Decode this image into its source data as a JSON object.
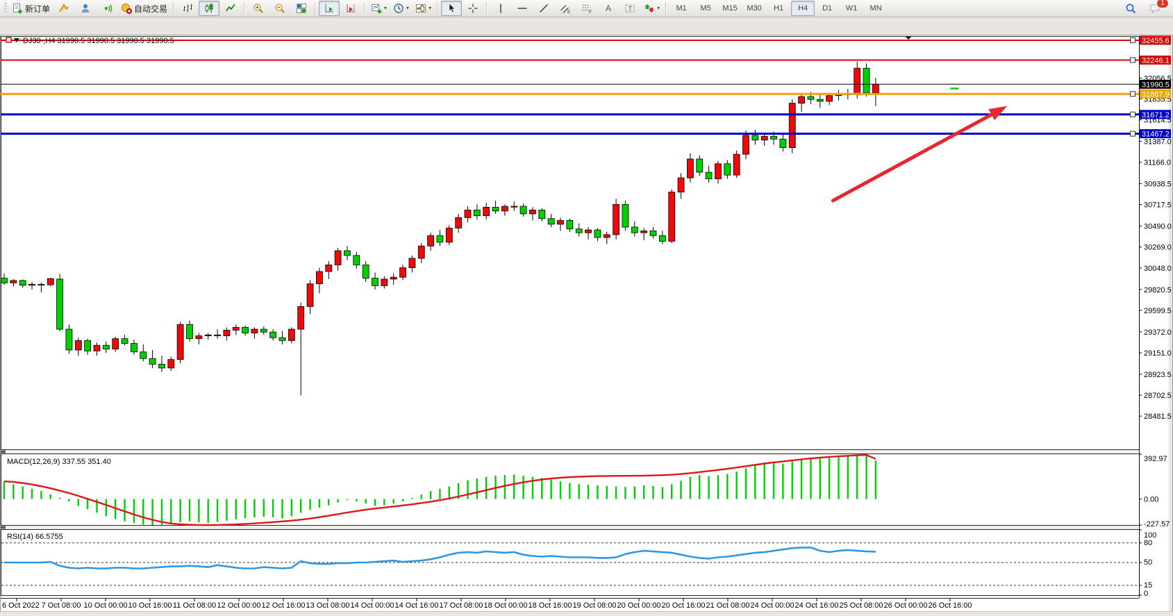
{
  "toolbar": {
    "new_order": "新订单",
    "auto_trading": "自动交易",
    "timeframes": [
      "M1",
      "M5",
      "M15",
      "M30",
      "H1",
      "H4",
      "D1",
      "W1",
      "MN"
    ],
    "active_timeframe": "H4",
    "notification_badge": "1"
  },
  "chart_data": {
    "type": "candlestick",
    "title": "DJ30-,H4",
    "info_line": "DJ30-,H4  31990.5 31990.5 31990.5 31990.5",
    "timeframe": "H4",
    "bull_color": "#ee0a0a",
    "bear_color": "#00cf00",
    "price_range": [
      28130,
      32492
    ],
    "price_axis_ticks": [
      32056.5,
      31835.5,
      31614.5,
      31387.0,
      31166.0,
      30938.5,
      30717.5,
      30490.0,
      30269.0,
      30048.0,
      29820.5,
      29599.5,
      29372.0,
      29151.0,
      28923.5,
      28702.5,
      28481.5
    ],
    "x_tick_labels": [
      "6 Oct 2022",
      "7 Oct 08:00",
      "10 Oct 00:00",
      "10 Oct 16:00",
      "11 Oct 08:00",
      "12 Oct 00:00",
      "12 Oct 16:00",
      "13 Oct 08:00",
      "14 Oct 00:00",
      "14 Oct 16:00",
      "17 Oct 08:00",
      "18 Oct 00:00",
      "18 Oct 16:00",
      "19 Oct 08:00",
      "20 Oct 00:00",
      "20 Oct 16:00",
      "21 Oct 08:00",
      "24 Oct 00:00",
      "24 Oct 16:00",
      "25 Oct 08:00",
      "26 Oct 00:00",
      "26 Oct 16:00"
    ],
    "levels": [
      {
        "price": 32455.6,
        "label": "32455.6",
        "color": "#dd0000",
        "width": 2,
        "handle": true
      },
      {
        "price": 32246.1,
        "label": "32246.1",
        "color": "#dd0000",
        "width": 2,
        "handle": true
      },
      {
        "price": 31990.5,
        "label": "31990.5",
        "color": "#000000",
        "width": 1,
        "handle": false
      },
      {
        "price": 31887.9,
        "label": "31887.9",
        "color": "#efa400",
        "width": 3,
        "handle": true
      },
      {
        "price": 31671.2,
        "label": "31671.2",
        "color": "#0000cc",
        "width": 3,
        "handle": true
      },
      {
        "price": 31467.2,
        "label": "31467.2",
        "color": "#0000cc",
        "width": 3,
        "handle": true
      }
    ],
    "current_price": 31990.5,
    "trend_arrow": {
      "bar_from": 89.4,
      "price_from": 30760,
      "bar_to": 108.2,
      "price_to": 31760,
      "color": "#e8262d"
    },
    "open_marker": {
      "bar": 102.5,
      "price": 31945,
      "color": "#00cf00"
    },
    "candles": [
      [
        29940,
        29990,
        29870,
        29890
      ],
      [
        29890,
        29930,
        29850,
        29915
      ],
      [
        29915,
        29925,
        29840,
        29865
      ],
      [
        29865,
        29900,
        29820,
        29875
      ],
      [
        29875,
        29895,
        29790,
        29870
      ],
      [
        29870,
        29945,
        29855,
        29935
      ],
      [
        29930,
        29985,
        29380,
        29400
      ],
      [
        29400,
        29450,
        29140,
        29180
      ],
      [
        29180,
        29310,
        29120,
        29280
      ],
      [
        29280,
        29300,
        29130,
        29170
      ],
      [
        29170,
        29260,
        29120,
        29230
      ],
      [
        29230,
        29270,
        29150,
        29190
      ],
      [
        29190,
        29320,
        29160,
        29300
      ],
      [
        29300,
        29340,
        29230,
        29250
      ],
      [
        29250,
        29290,
        29130,
        29160
      ],
      [
        29160,
        29240,
        29060,
        29090
      ],
      [
        29090,
        29180,
        28990,
        29030
      ],
      [
        29030,
        29120,
        28950,
        28990
      ],
      [
        28990,
        29110,
        28960,
        29080
      ],
      [
        29080,
        29480,
        29040,
        29450
      ],
      [
        29450,
        29490,
        29270,
        29300
      ],
      [
        29300,
        29360,
        29240,
        29330
      ],
      [
        29330,
        29360,
        29290,
        29340
      ],
      [
        29340,
        29400,
        29300,
        29330
      ],
      [
        29330,
        29420,
        29280,
        29390
      ],
      [
        29390,
        29450,
        29340,
        29420
      ],
      [
        29420,
        29440,
        29330,
        29360
      ],
      [
        29360,
        29420,
        29300,
        29400
      ],
      [
        29400,
        29430,
        29340,
        29370
      ],
      [
        29370,
        29400,
        29280,
        29310
      ],
      [
        29310,
        29380,
        29240,
        29280
      ],
      [
        29280,
        29420,
        29250,
        29400
      ],
      [
        29400,
        29680,
        28700,
        29640
      ],
      [
        29640,
        29920,
        29560,
        29880
      ],
      [
        29880,
        30050,
        29780,
        30010
      ],
      [
        30010,
        30120,
        29930,
        30080
      ],
      [
        30080,
        30260,
        30020,
        30230
      ],
      [
        30230,
        30280,
        30130,
        30180
      ],
      [
        30180,
        30220,
        30040,
        30080
      ],
      [
        30080,
        30120,
        29900,
        29940
      ],
      [
        29940,
        30000,
        29820,
        29860
      ],
      [
        29860,
        29960,
        29830,
        29930
      ],
      [
        29930,
        29990,
        29870,
        29950
      ],
      [
        29950,
        30080,
        29920,
        30050
      ],
      [
        30050,
        30180,
        30000,
        30150
      ],
      [
        30150,
        30310,
        30100,
        30280
      ],
      [
        30280,
        30420,
        30230,
        30390
      ],
      [
        30390,
        30450,
        30280,
        30320
      ],
      [
        30320,
        30500,
        30290,
        30470
      ],
      [
        30470,
        30620,
        30420,
        30580
      ],
      [
        30580,
        30700,
        30530,
        30660
      ],
      [
        30660,
        30720,
        30560,
        30600
      ],
      [
        30600,
        30740,
        30560,
        30690
      ],
      [
        30690,
        30760,
        30620,
        30650
      ],
      [
        30650,
        30720,
        30600,
        30700
      ],
      [
        30700,
        30750,
        30650,
        30700
      ],
      [
        30700,
        30730,
        30590,
        30620
      ],
      [
        30620,
        30690,
        30550,
        30660
      ],
      [
        30660,
        30680,
        30540,
        30570
      ],
      [
        30570,
        30620,
        30480,
        30510
      ],
      [
        30510,
        30580,
        30440,
        30550
      ],
      [
        30550,
        30570,
        30430,
        30460
      ],
      [
        30460,
        30520,
        30380,
        30420
      ],
      [
        30420,
        30480,
        30350,
        30450
      ],
      [
        30450,
        30470,
        30330,
        30370
      ],
      [
        30370,
        30430,
        30300,
        30400
      ],
      [
        30400,
        30780,
        30350,
        30720
      ],
      [
        30720,
        30760,
        30440,
        30480
      ],
      [
        30480,
        30540,
        30380,
        30420
      ],
      [
        30420,
        30470,
        30340,
        30440
      ],
      [
        30440,
        30480,
        30360,
        30390
      ],
      [
        30390,
        30440,
        30300,
        30330
      ],
      [
        30330,
        30880,
        30310,
        30850
      ],
      [
        30850,
        31050,
        30780,
        31000
      ],
      [
        31000,
        31260,
        30950,
        31200
      ],
      [
        31200,
        31240,
        31020,
        31060
      ],
      [
        31060,
        31130,
        30950,
        30990
      ],
      [
        30990,
        31180,
        30940,
        31150
      ],
      [
        31150,
        31190,
        30990,
        31030
      ],
      [
        31030,
        31290,
        31000,
        31250
      ],
      [
        31250,
        31500,
        31200,
        31450
      ],
      [
        31450,
        31510,
        31350,
        31400
      ],
      [
        31400,
        31480,
        31340,
        31440
      ],
      [
        31440,
        31490,
        31350,
        31410
      ],
      [
        31410,
        31470,
        31280,
        31320
      ],
      [
        31320,
        31830,
        31260,
        31790
      ],
      [
        31790,
        31900,
        31700,
        31860
      ],
      [
        31860,
        31910,
        31780,
        31830
      ],
      [
        31830,
        31880,
        31740,
        31810
      ],
      [
        31810,
        31900,
        31770,
        31870
      ],
      [
        31870,
        31930,
        31820,
        31890
      ],
      [
        31890,
        31940,
        31830,
        31880
      ],
      [
        31880,
        32230,
        31840,
        32160
      ],
      [
        32160,
        32210,
        31860,
        31900
      ],
      [
        31900,
        32060,
        31760,
        31990.5
      ]
    ],
    "macd": {
      "label": "MACD(12,26,9) 337.55 351.40",
      "value": 337.55,
      "signal_value": 351.4,
      "range": [
        -227.57,
        392.97
      ],
      "ticks": [
        392.97,
        0.0,
        -227.57
      ],
      "tick_labels": [
        "392.97",
        "0.00",
        "-227.57"
      ],
      "hist_color": "#00cf00",
      "signal_color": "#e01515",
      "histogram": [
        150,
        130,
        110,
        90,
        70,
        40,
        10,
        -20,
        -60,
        -90,
        -120,
        -150,
        -175,
        -195,
        -210,
        -224,
        -227.57,
        -226,
        -220,
        -205,
        -195,
        -205,
        -210,
        -200,
        -190,
        -178,
        -168,
        -160,
        -155,
        -160,
        -170,
        -150,
        -120,
        -95,
        -75,
        -55,
        -30,
        -10,
        -20,
        -40,
        -60,
        -55,
        -40,
        -20,
        10,
        40,
        70,
        90,
        110,
        140,
        165,
        180,
        195,
        205,
        210,
        215,
        205,
        195,
        185,
        170,
        155,
        140,
        130,
        125,
        120,
        115,
        110,
        105,
        110,
        120,
        115,
        105,
        130,
        160,
        195,
        210,
        200,
        210,
        220,
        240,
        270,
        295,
        310,
        320,
        310,
        330,
        345,
        355,
        360,
        365,
        370,
        375,
        385,
        392.97,
        337.55
      ],
      "signal": [
        155,
        150,
        140,
        128,
        112,
        94,
        74,
        52,
        28,
        2,
        -25,
        -52,
        -80,
        -108,
        -135,
        -160,
        -182,
        -200,
        -214,
        -221,
        -225,
        -227,
        -227.5,
        -227,
        -225,
        -222,
        -218,
        -213,
        -208,
        -202,
        -196,
        -189,
        -181,
        -171,
        -159,
        -146,
        -132,
        -118,
        -105,
        -93,
        -83,
        -74,
        -65,
        -56,
        -46,
        -35,
        -23,
        -10,
        5,
        22,
        40,
        59,
        78,
        97,
        115,
        132,
        147,
        160,
        171,
        180,
        187,
        192,
        196,
        199,
        201,
        202,
        203,
        203,
        204,
        205,
        207,
        209,
        213,
        219,
        227,
        236,
        245,
        255,
        265,
        276,
        288,
        300,
        311,
        321,
        330,
        339,
        348,
        356,
        363,
        369,
        374,
        379,
        383,
        386,
        351.4
      ]
    },
    "rsi": {
      "label": "RSI(14) 66.5755",
      "value": 66.5755,
      "range": [
        0,
        100
      ],
      "ticks": [
        100,
        80,
        50,
        15,
        0
      ],
      "tick_labels": [
        "100",
        "80",
        "50",
        "15",
        "0"
      ],
      "dashed_levels": [
        80,
        50,
        15
      ],
      "color": "#2e97e6",
      "values": [
        50,
        50,
        50,
        50,
        50,
        51,
        45,
        42,
        41,
        42,
        41,
        41,
        42,
        42,
        41,
        41,
        42,
        43,
        44,
        44,
        45,
        44,
        43,
        46,
        44,
        42,
        41,
        41,
        43,
        42,
        41,
        42,
        52,
        49,
        48,
        48,
        49,
        49,
        50,
        50,
        51,
        52,
        53,
        51,
        52,
        53,
        55,
        58,
        62,
        65,
        66,
        65,
        67,
        66,
        65,
        66,
        62,
        60,
        59,
        60,
        59,
        58,
        58,
        58,
        57,
        57,
        58,
        63,
        66,
        68,
        67,
        66,
        65,
        62,
        59,
        57,
        56,
        58,
        59,
        61,
        63,
        65,
        66,
        68,
        70,
        72,
        73,
        73,
        68,
        66,
        68,
        69,
        68,
        67,
        66.5755
      ]
    }
  }
}
